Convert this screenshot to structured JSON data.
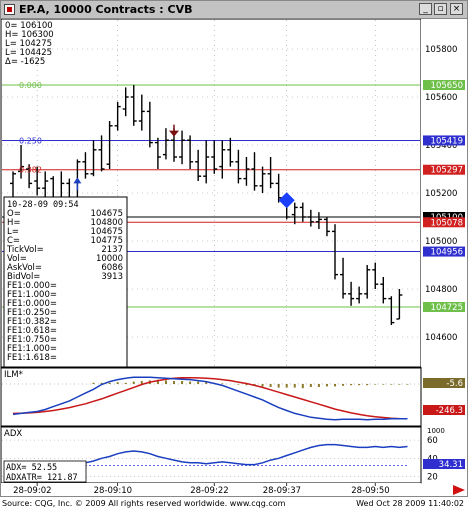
{
  "window": {
    "title": "EP.A, 10000 Contracts : CVB",
    "minimize_glyph": "_",
    "restore_glyph": "▫",
    "close_glyph": "×"
  },
  "footer": {
    "source": "Source: CQG, Inc. © 2009 All rights reserved worldwide. www.cqg.com",
    "timestamp": "Wed Oct 28 2009 11:40:02"
  },
  "ohlc": {
    "o": "0=  106100",
    "h": "H=  106300",
    "l": "L=  104275",
    "c": "L=  104425",
    "d": "Δ=   -1625"
  },
  "levels_labels": {
    "fib0": "0.000",
    "fib250": "0.250",
    "fib382": "0.382"
  },
  "price_axis": {
    "ticks": [
      "105800",
      "105600",
      "105400",
      "105200",
      "105000",
      "104800",
      "104600"
    ],
    "tags": [
      {
        "text": "105650",
        "color": "#6fc04a"
      },
      {
        "text": "105419",
        "color": "#2f2fd0"
      },
      {
        "text": "105297",
        "color": "#d02020"
      },
      {
        "text": "105100",
        "color": "#000000"
      },
      {
        "text": "105078",
        "color": "#d02020"
      },
      {
        "text": "104956",
        "color": "#2f2fd0"
      },
      {
        "text": "104725",
        "color": "#6fc04a"
      }
    ]
  },
  "time_axis": [
    "28-09:02",
    "28-09:10",
    "28-09:22",
    "28-09:37",
    "28-09:50"
  ],
  "info_panel": {
    "header": "10-28-09  09:54",
    "rows": [
      {
        "k": "O=",
        "v": "104675"
      },
      {
        "k": "H=",
        "v": "104800"
      },
      {
        "k": "L=",
        "v": "104675"
      },
      {
        "k": "C=",
        "v": "104775"
      },
      {
        "k": "TickVol=",
        "v": "2137"
      },
      {
        "k": "Vol=",
        "v": "10000"
      },
      {
        "k": "AskVol=",
        "v": "6086"
      },
      {
        "k": "BidVol=",
        "v": "3913"
      },
      {
        "k": "FE1:0.000=",
        "v": ""
      },
      {
        "k": "FE1:1.000=",
        "v": ""
      },
      {
        "k": "FE1:0.000=",
        "v": ""
      },
      {
        "k": "FE1:0.250=",
        "v": ""
      },
      {
        "k": "FE1:0.382=",
        "v": ""
      },
      {
        "k": "FE1:0.618=",
        "v": ""
      },
      {
        "k": "FE1:0.750=",
        "v": ""
      },
      {
        "k": "FE1:1.000=",
        "v": ""
      },
      {
        "k": "FE1:1.618=",
        "v": ""
      }
    ]
  },
  "ilm": {
    "label": "ILM*",
    "tag1": "-5.6",
    "tag2": "-246.3"
  },
  "adx": {
    "label": "ADX",
    "adx_value_row": "ADX=       52.55",
    "adxatr_row": "ADXATR=   121.87",
    "ticks": [
      "1000",
      "60",
      "40",
      "20"
    ],
    "tag": "34.31"
  },
  "chart_data": {
    "type": "ohlc-bar",
    "bars": [
      {
        "o": 105240,
        "h": 105290,
        "l": 105170,
        "c": 105280
      },
      {
        "o": 105290,
        "h": 105400,
        "l": 105260,
        "c": 105310
      },
      {
        "o": 105300,
        "h": 105320,
        "l": 105220,
        "c": 105240
      },
      {
        "o": 105250,
        "h": 105310,
        "l": 105190,
        "c": 105220
      },
      {
        "o": 105220,
        "h": 105290,
        "l": 105140,
        "c": 105250
      },
      {
        "o": 105260,
        "h": 105270,
        "l": 105120,
        "c": 105150
      },
      {
        "o": 105160,
        "h": 105290,
        "l": 105110,
        "c": 105240
      },
      {
        "o": 105240,
        "h": 105260,
        "l": 105100,
        "c": 105170
      },
      {
        "o": 105180,
        "h": 105340,
        "l": 105170,
        "c": 105330
      },
      {
        "o": 105330,
        "h": 105370,
        "l": 105260,
        "c": 105280
      },
      {
        "o": 105280,
        "h": 105420,
        "l": 105270,
        "c": 105380
      },
      {
        "o": 105380,
        "h": 105440,
        "l": 105290,
        "c": 105300
      },
      {
        "o": 105320,
        "h": 105500,
        "l": 105300,
        "c": 105480
      },
      {
        "o": 105480,
        "h": 105580,
        "l": 105460,
        "c": 105560
      },
      {
        "o": 105550,
        "h": 105640,
        "l": 105520,
        "c": 105600
      },
      {
        "o": 105600,
        "h": 105650,
        "l": 105480,
        "c": 105500
      },
      {
        "o": 105500,
        "h": 105610,
        "l": 105460,
        "c": 105540
      },
      {
        "o": 105540,
        "h": 105580,
        "l": 105390,
        "c": 105410
      },
      {
        "o": 105410,
        "h": 105430,
        "l": 105300,
        "c": 105350
      },
      {
        "o": 105360,
        "h": 105470,
        "l": 105340,
        "c": 105420
      },
      {
        "o": 105420,
        "h": 105470,
        "l": 105330,
        "c": 105350
      },
      {
        "o": 105350,
        "h": 105460,
        "l": 105320,
        "c": 105420
      },
      {
        "o": 105420,
        "h": 105440,
        "l": 105300,
        "c": 105330
      },
      {
        "o": 105330,
        "h": 105380,
        "l": 105250,
        "c": 105270
      },
      {
        "o": 105270,
        "h": 105420,
        "l": 105240,
        "c": 105350
      },
      {
        "o": 105350,
        "h": 105420,
        "l": 105280,
        "c": 105300
      },
      {
        "o": 105310,
        "h": 105420,
        "l": 105260,
        "c": 105380
      },
      {
        "o": 105380,
        "h": 105430,
        "l": 105310,
        "c": 105330
      },
      {
        "o": 105330,
        "h": 105380,
        "l": 105240,
        "c": 105260
      },
      {
        "o": 105260,
        "h": 105350,
        "l": 105230,
        "c": 105300
      },
      {
        "o": 105300,
        "h": 105370,
        "l": 105210,
        "c": 105230
      },
      {
        "o": 105230,
        "h": 105310,
        "l": 105200,
        "c": 105280
      },
      {
        "o": 105280,
        "h": 105350,
        "l": 105220,
        "c": 105240
      },
      {
        "o": 105240,
        "h": 105280,
        "l": 105160,
        "c": 105180
      },
      {
        "o": 105180,
        "h": 105200,
        "l": 105090,
        "c": 105100
      },
      {
        "o": 105110,
        "h": 105160,
        "l": 105070,
        "c": 105140
      },
      {
        "o": 105140,
        "h": 105160,
        "l": 105080,
        "c": 105100
      },
      {
        "o": 105100,
        "h": 105130,
        "l": 105060,
        "c": 105080
      },
      {
        "o": 105080,
        "h": 105120,
        "l": 105050,
        "c": 105090
      },
      {
        "o": 105090,
        "h": 105100,
        "l": 105020,
        "c": 105040
      },
      {
        "o": 105040,
        "h": 105070,
        "l": 104840,
        "c": 104860
      },
      {
        "o": 104860,
        "h": 104930,
        "l": 104760,
        "c": 104780
      },
      {
        "o": 104780,
        "h": 104830,
        "l": 104730,
        "c": 104760
      },
      {
        "o": 104760,
        "h": 104810,
        "l": 104740,
        "c": 104780
      },
      {
        "o": 104780,
        "h": 104900,
        "l": 104760,
        "c": 104880
      },
      {
        "o": 104880,
        "h": 104910,
        "l": 104800,
        "c": 104820
      },
      {
        "o": 104820,
        "h": 104850,
        "l": 104740,
        "c": 104760
      },
      {
        "o": 104760,
        "h": 104770,
        "l": 104650,
        "c": 104660
      },
      {
        "o": 104675,
        "h": 104800,
        "l": 104675,
        "c": 104775
      }
    ],
    "levels": [
      {
        "name": "0.000",
        "value": 105650,
        "color": "#6fc04a"
      },
      {
        "name": "0.250",
        "value": 105419,
        "color": "#2f2fd0"
      },
      {
        "name": "0.382",
        "value": 105297,
        "color": "#d02020"
      },
      {
        "name": "",
        "value": 105100,
        "color": "#000000"
      },
      {
        "name": "",
        "value": 105078,
        "color": "#d02020"
      },
      {
        "name": "",
        "value": 104956,
        "color": "#2f2fd0"
      },
      {
        "name": "",
        "value": 104725,
        "color": "#6fc04a"
      }
    ],
    "markers": [
      {
        "type": "up-arrow",
        "bar": 8,
        "value": 105240,
        "color": "#1a3fbf"
      },
      {
        "type": "down-arrow",
        "bar": 20,
        "value": 105460,
        "color": "#7a1010"
      },
      {
        "type": "diamond",
        "bar": 34,
        "value": 105170,
        "color": "#1a3fff"
      }
    ],
    "ylim": [
      104500,
      105900
    ],
    "ilm": {
      "histogram": [
        0,
        0,
        0,
        0,
        0,
        0,
        0,
        0,
        0,
        0,
        0.2,
        0.2,
        0.2,
        0.3,
        0.2,
        0.4,
        0.5,
        0.6,
        0.7,
        0.6,
        0.5,
        0.5,
        0.4,
        0.4,
        0.3,
        0.2,
        0.1,
        0,
        -0.1,
        -0.2,
        -0.3,
        -0.4,
        -0.5,
        -0.6,
        -0.6,
        -0.6,
        -0.7,
        -0.5,
        -0.5,
        -0.4,
        -0.4,
        -0.3,
        -0.2,
        -0.2,
        -0.2,
        -0.1,
        -0.1,
        -0.1,
        -0.1,
        -0.1
      ],
      "blue": [
        -200,
        -190,
        -180,
        -170,
        -150,
        -120,
        -90,
        -60,
        -20,
        20,
        60,
        110,
        140,
        160,
        175,
        185,
        185,
        185,
        180,
        175,
        170,
        165,
        160,
        150,
        140,
        120,
        100,
        70,
        40,
        10,
        -20,
        -50,
        -90,
        -130,
        -160,
        -190,
        -210,
        -230,
        -240,
        -250,
        -255,
        -250,
        -250,
        -250,
        -255,
        -250,
        -250,
        -245,
        -245,
        -246
      ],
      "red": [
        -190,
        -188,
        -185,
        -180,
        -170,
        -160,
        -145,
        -130,
        -110,
        -90,
        -65,
        -40,
        -10,
        20,
        50,
        80,
        110,
        135,
        150,
        165,
        175,
        180,
        180,
        178,
        175,
        170,
        160,
        150,
        135,
        120,
        100,
        80,
        55,
        30,
        5,
        -20,
        -45,
        -70,
        -95,
        -120,
        -145,
        -165,
        -185,
        -200,
        -215,
        -225,
        -233,
        -240,
        -244,
        -246
      ]
    },
    "adx_series": {
      "blue": [
        30,
        28,
        27,
        26,
        25,
        27,
        28,
        30,
        32,
        35,
        37,
        40,
        42,
        45,
        47,
        48,
        47,
        45,
        42,
        40,
        38,
        36,
        35,
        35,
        34,
        35,
        36,
        35,
        34,
        33,
        33,
        35,
        38,
        40,
        43,
        46,
        49,
        52,
        54,
        55,
        55,
        54,
        53,
        52,
        52,
        53,
        52,
        53,
        52,
        53
      ],
      "avg": [
        32,
        32,
        32,
        32,
        32,
        32,
        32,
        32,
        32,
        32,
        32,
        32,
        32,
        32,
        32,
        32,
        32,
        32,
        32,
        32,
        32,
        32,
        32,
        32,
        32,
        32,
        32,
        32,
        32,
        32,
        32,
        32,
        32,
        32,
        32,
        32,
        32,
        32,
        32,
        32,
        32,
        32,
        32,
        32,
        32,
        32,
        32,
        32,
        32,
        32
      ]
    }
  }
}
